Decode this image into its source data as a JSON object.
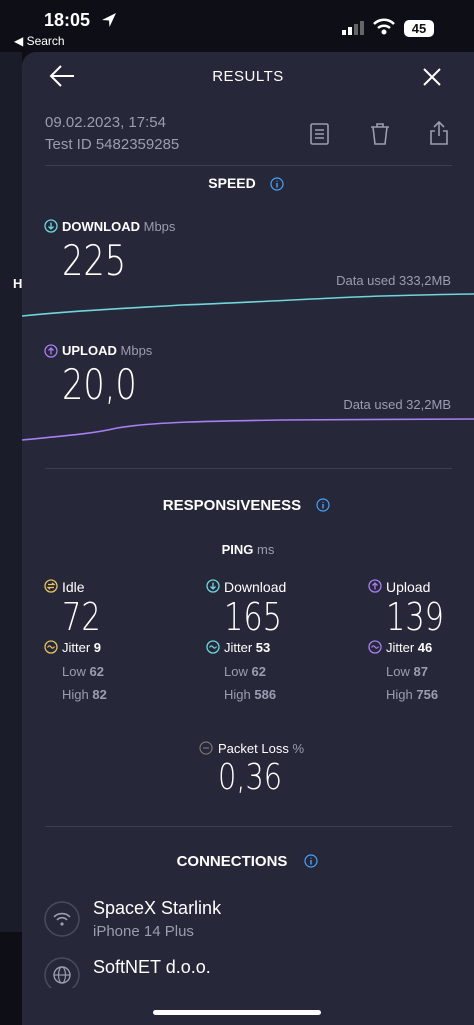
{
  "status_bar": {
    "time": "18:05",
    "back": "Search",
    "battery": "45"
  },
  "background_letter": "H",
  "header": {
    "title": "RESULTS"
  },
  "meta": {
    "date": "09.02.2023, 17:54",
    "test_id": "Test ID 5482359285"
  },
  "speed": {
    "title": "SPEED",
    "download": {
      "label": "DOWNLOAD",
      "unit": "Mbps",
      "value": "225",
      "data_used": "Data used 333,2MB"
    },
    "upload": {
      "label": "UPLOAD",
      "unit": "Mbps",
      "value": "20,0",
      "data_used": "Data used 32,2MB"
    }
  },
  "responsiveness": {
    "title": "RESPONSIVENESS",
    "ping_label": "PING",
    "ping_unit": "ms",
    "columns": [
      {
        "label": "Idle",
        "value": "72",
        "jitter_label": "Jitter",
        "jitter": "9",
        "low_label": "Low",
        "low": "62",
        "high_label": "High",
        "high": "82"
      },
      {
        "label": "Download",
        "value": "165",
        "jitter_label": "Jitter",
        "jitter": "53",
        "low_label": "Low",
        "low": "62",
        "high_label": "High",
        "high": "586"
      },
      {
        "label": "Upload",
        "value": "139",
        "jitter_label": "Jitter",
        "jitter": "46",
        "low_label": "Low",
        "low": "87",
        "high_label": "High",
        "high": "756"
      }
    ]
  },
  "packet_loss": {
    "label": "Packet Loss",
    "unit": "%",
    "value": "0,36"
  },
  "connections": {
    "title": "CONNECTIONS",
    "items": [
      {
        "name": "SpaceX Starlink",
        "detail": "iPhone 14 Plus"
      },
      {
        "name": "SoftNET d.o.o."
      }
    ]
  }
}
